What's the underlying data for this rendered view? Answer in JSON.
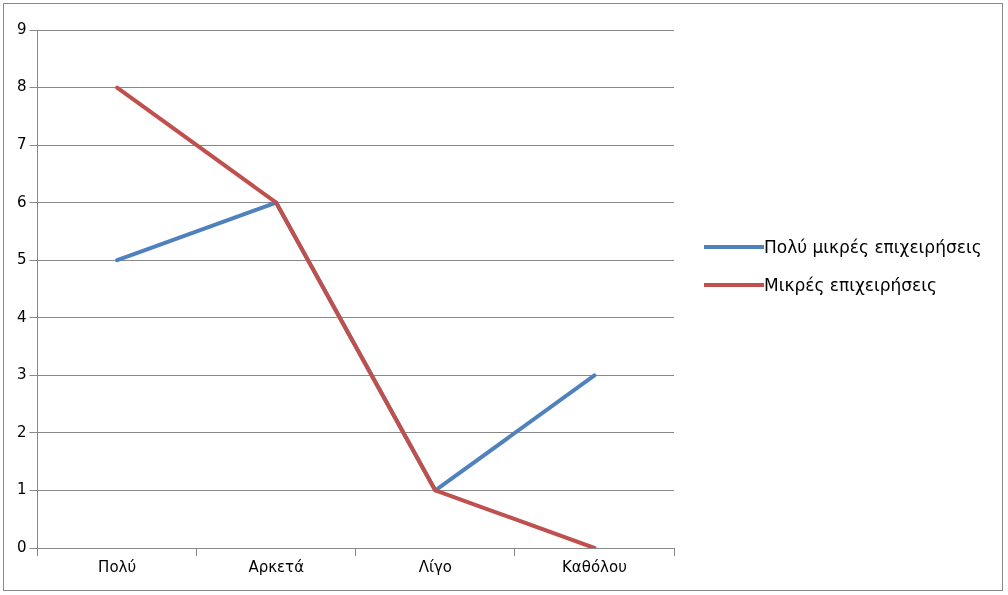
{
  "chart_data": {
    "type": "line",
    "categories": [
      "Πολύ",
      "Αρκετά",
      "Λίγο",
      "Καθόλου"
    ],
    "series": [
      {
        "name": "Πολύ μικρές επιχειρήσεις",
        "color": "#4f81bd",
        "values": [
          5,
          6,
          1,
          3
        ]
      },
      {
        "name": "Μικρές επιχειρήσεις",
        "color": "#c0504d",
        "values": [
          8,
          6,
          1,
          0
        ]
      }
    ],
    "ylim": [
      0,
      9
    ],
    "yticks": [
      0,
      1,
      2,
      3,
      4,
      5,
      6,
      7,
      8,
      9
    ],
    "grid": "y",
    "legend": "right",
    "marker": "none",
    "line_style": "solid"
  }
}
